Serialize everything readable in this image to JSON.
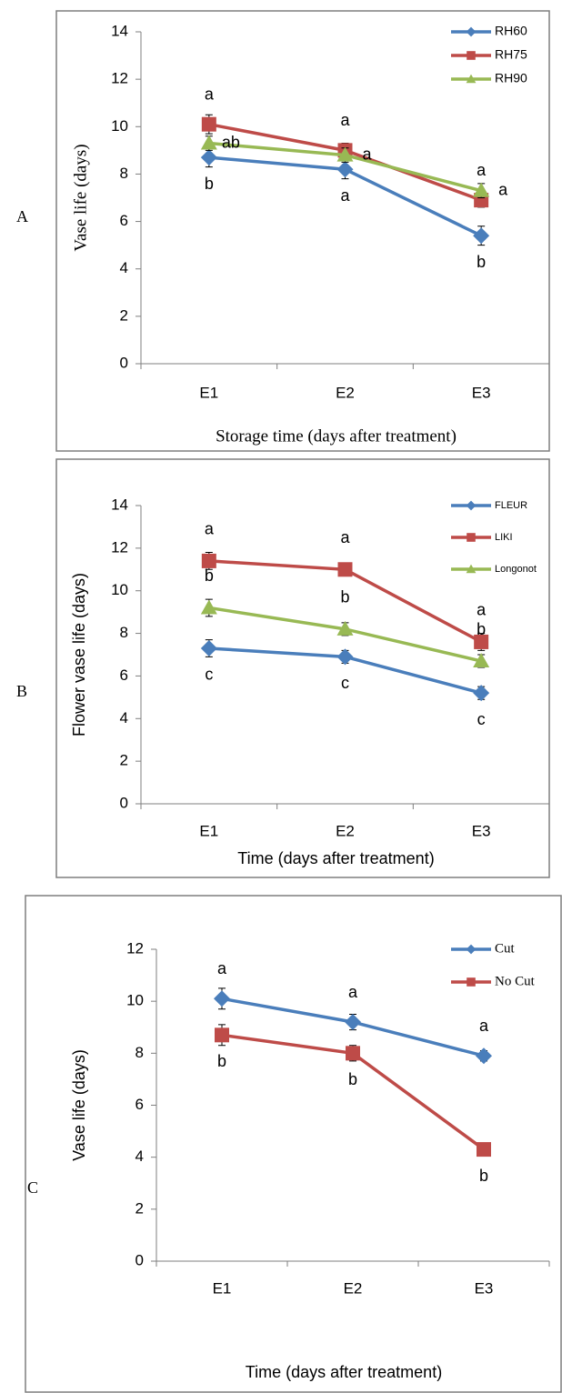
{
  "chart_data": [
    {
      "type": "line",
      "label": "A",
      "ylabel": "Vase life (days)",
      "xlabel": "Storage time (days after treatment)",
      "categories": [
        "E1",
        "E2",
        "E3"
      ],
      "ylim": [
        0,
        14
      ],
      "yticks": [
        0,
        2,
        4,
        6,
        8,
        10,
        12,
        14
      ],
      "legend": "upper right",
      "series": [
        {
          "name": "RH60",
          "color": "#4a7ebb",
          "values": [
            8.7,
            8.2,
            5.4
          ],
          "errors": [
            0.4,
            0.4,
            0.4
          ],
          "letters": [
            "b",
            "a",
            "b"
          ]
        },
        {
          "name": "RH75",
          "color": "#be4b48",
          "values": [
            10.1,
            9.0,
            6.9
          ],
          "errors": [
            0.4,
            0.3,
            0.3
          ],
          "letters": [
            "a",
            "a",
            "a"
          ]
        },
        {
          "name": "RH90",
          "color": "#98b954",
          "values": [
            9.3,
            8.8,
            7.3
          ],
          "errors": [
            0.3,
            0.3,
            0.3
          ],
          "letters": [
            "ab",
            "a",
            "a"
          ]
        }
      ]
    },
    {
      "type": "line",
      "label": "B",
      "ylabel": "Flower vase life (days)",
      "xlabel": "Time (days after treatment)",
      "categories": [
        "E1",
        "E2",
        "E3"
      ],
      "ylim": [
        0,
        14
      ],
      "yticks": [
        0,
        2,
        4,
        6,
        8,
        10,
        12,
        14
      ],
      "legend": "upper right",
      "series": [
        {
          "name": "FLEUR",
          "color": "#4a7ebb",
          "values": [
            7.3,
            6.9,
            5.2
          ],
          "errors": [
            0.4,
            0.3,
            0.3
          ],
          "letters": [
            "c",
            "c",
            "c"
          ]
        },
        {
          "name": "LIKI",
          "color": "#be4b48",
          "values": [
            11.4,
            11.0,
            7.6
          ],
          "errors": [
            0.4,
            0.2,
            0.4
          ],
          "letters": [
            "a",
            "a",
            "a"
          ]
        },
        {
          "name": "Longonot",
          "color": "#98b954",
          "values": [
            9.2,
            8.2,
            6.7
          ],
          "errors": [
            0.4,
            0.3,
            0.3
          ],
          "letters": [
            "b",
            "b",
            "b"
          ]
        }
      ]
    },
    {
      "type": "line",
      "label": "C",
      "ylabel": "Vase life (days)",
      "xlabel": "Time (days after treatment)",
      "categories": [
        "E1",
        "E2",
        "E3"
      ],
      "ylim": [
        0,
        12
      ],
      "yticks": [
        0,
        2,
        4,
        6,
        8,
        10,
        12
      ],
      "legend": "upper right",
      "series": [
        {
          "name": "Cut",
          "color": "#4a7ebb",
          "values": [
            10.1,
            9.2,
            7.9
          ],
          "errors": [
            0.4,
            0.3,
            0.2
          ],
          "letters": [
            "a",
            "a",
            "a"
          ]
        },
        {
          "name": "No Cut",
          "color": "#be4b48",
          "values": [
            8.7,
            8.0,
            4.3
          ],
          "errors": [
            0.4,
            0.3,
            0.2
          ],
          "letters": [
            "b",
            "b",
            "b"
          ]
        }
      ]
    }
  ]
}
